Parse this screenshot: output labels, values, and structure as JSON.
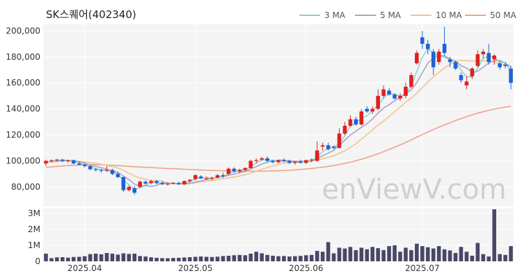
{
  "title": "SK스퀘어(402340)",
  "watermark": "enViewV.com",
  "colors": {
    "up": "#e02020",
    "down": "#1f62d6",
    "ma3": "#7fd3d0",
    "ma5": "#a9a2c9",
    "ma10": "#efc58c",
    "ma50": "#f0a28c",
    "volume": "#474868",
    "panel_bg": "#f4f4f4",
    "grid": "#ffffff"
  },
  "chart_data": {
    "type": "candlestick",
    "price_axis": {
      "min": 65000,
      "max": 205000,
      "ticks": [
        "200,000",
        "180,000",
        "160,000",
        "140,000",
        "120,000",
        "100,000",
        "80,000"
      ],
      "tick_values": [
        200000,
        180000,
        160000,
        140000,
        120000,
        100000,
        80000
      ]
    },
    "volume_axis": {
      "min": 0,
      "max": 3300000,
      "ticks": [
        "3M",
        "2M",
        "1M",
        "0"
      ],
      "tick_values": [
        3000000,
        2000000,
        1000000,
        0
      ]
    },
    "x_ticks": [
      {
        "label": "2025.04",
        "index": 7
      },
      {
        "label": "2025.05",
        "index": 27
      },
      {
        "label": "2025.06",
        "index": 47
      },
      {
        "label": "2025.07",
        "index": 68
      }
    ],
    "legend": [
      "3 MA",
      "5 MA",
      "10 MA",
      "50 MA"
    ],
    "candles": [
      [
        98000,
        101000,
        96000,
        100000
      ],
      [
        100000,
        101000,
        99000,
        100500
      ],
      [
        100500,
        101500,
        99500,
        101000
      ],
      [
        101000,
        101500,
        99000,
        100000
      ],
      [
        100000,
        101000,
        98500,
        100500
      ],
      [
        100500,
        101000,
        97500,
        98000
      ],
      [
        98000,
        99500,
        96500,
        97000
      ],
      [
        97000,
        98000,
        95000,
        96000
      ],
      [
        96000,
        97000,
        93000,
        93500
      ],
      [
        93500,
        94500,
        92000,
        93000
      ],
      [
        93000,
        94000,
        91000,
        92500
      ],
      [
        92500,
        96000,
        91500,
        93000
      ],
      [
        93000,
        94000,
        89000,
        90000
      ],
      [
        90000,
        91500,
        87000,
        87500
      ],
      [
        87500,
        88000,
        76000,
        77500
      ],
      [
        77500,
        81000,
        76500,
        80000
      ],
      [
        79000,
        80500,
        74000,
        75500
      ],
      [
        80000,
        85000,
        79000,
        84000
      ],
      [
        84000,
        85000,
        81000,
        82500
      ],
      [
        83000,
        85500,
        82000,
        84500
      ],
      [
        84500,
        85500,
        82000,
        83000
      ],
      [
        83000,
        84500,
        81500,
        82000
      ],
      [
        82000,
        83500,
        81000,
        82500
      ],
      [
        82500,
        84000,
        82000,
        83000
      ],
      [
        83000,
        84000,
        81500,
        82000
      ],
      [
        82000,
        85000,
        81500,
        84500
      ],
      [
        84500,
        86000,
        83500,
        85500
      ],
      [
        86000,
        90000,
        85000,
        89000
      ],
      [
        88000,
        89000,
        86000,
        86500
      ],
      [
        86500,
        88000,
        85500,
        86500
      ],
      [
        86500,
        88000,
        85000,
        87000
      ],
      [
        87000,
        90000,
        86500,
        89000
      ],
      [
        89000,
        91000,
        87000,
        88000
      ],
      [
        90000,
        95000,
        89000,
        94000
      ],
      [
        94000,
        95000,
        91000,
        92000
      ],
      [
        92000,
        94000,
        90500,
        93000
      ],
      [
        93000,
        95000,
        92000,
        94500
      ],
      [
        94500,
        101000,
        94000,
        100000
      ],
      [
        100000,
        102000,
        98000,
        100500
      ],
      [
        101000,
        103000,
        100000,
        102000
      ],
      [
        102000,
        103500,
        99000,
        100000
      ],
      [
        100000,
        101000,
        98000,
        99000
      ],
      [
        99000,
        101000,
        98000,
        100500
      ],
      [
        100500,
        102000,
        99000,
        100000
      ],
      [
        100000,
        101000,
        97500,
        98500
      ],
      [
        98500,
        100000,
        97000,
        99500
      ],
      [
        99500,
        101000,
        98000,
        98500
      ],
      [
        98500,
        101000,
        97500,
        100500
      ],
      [
        100500,
        102000,
        99000,
        101000
      ],
      [
        100000,
        115000,
        99500,
        108000
      ],
      [
        111000,
        114000,
        108000,
        112000
      ],
      [
        112000,
        114000,
        108000,
        109000
      ],
      [
        111000,
        112000,
        109000,
        110000
      ],
      [
        110000,
        125000,
        109500,
        121000
      ],
      [
        121000,
        130000,
        120000,
        127000
      ],
      [
        127000,
        135000,
        126000,
        132000
      ],
      [
        132000,
        134000,
        127000,
        128000
      ],
      [
        128000,
        140000,
        127000,
        138000
      ],
      [
        140000,
        142000,
        137000,
        138000
      ],
      [
        138000,
        142000,
        136000,
        140000
      ],
      [
        140000,
        155000,
        139000,
        150000
      ],
      [
        150000,
        158000,
        148000,
        155000
      ],
      [
        154000,
        156000,
        150000,
        151000
      ],
      [
        151000,
        152000,
        147000,
        148000
      ],
      [
        148000,
        152000,
        146000,
        150000
      ],
      [
        150000,
        160000,
        148000,
        157000
      ],
      [
        157000,
        168000,
        156000,
        166000
      ],
      [
        175000,
        185000,
        174000,
        183000
      ],
      [
        195000,
        200000,
        186000,
        190000
      ],
      [
        190000,
        193000,
        182000,
        186000
      ],
      [
        184000,
        186000,
        166000,
        172000
      ],
      [
        176000,
        186000,
        174000,
        184000
      ],
      [
        190000,
        203000,
        181000,
        183000
      ],
      [
        178000,
        180000,
        172000,
        176000
      ],
      [
        176000,
        177000,
        170000,
        171000
      ],
      [
        166000,
        168000,
        160000,
        162000
      ],
      [
        158000,
        165000,
        155000,
        161000
      ],
      [
        165000,
        172000,
        163000,
        171000
      ],
      [
        173000,
        185000,
        172000,
        182000
      ],
      [
        182000,
        186000,
        179000,
        184000
      ],
      [
        183000,
        190000,
        174000,
        176000
      ],
      [
        178000,
        182000,
        174000,
        181000
      ],
      [
        175000,
        177000,
        170000,
        172000
      ],
      [
        174000,
        176000,
        171000,
        173000
      ],
      [
        171000,
        173000,
        155000,
        160000
      ]
    ],
    "ma3": [
      99000,
      99800,
      100500,
      100500,
      100300,
      99500,
      98500,
      97000,
      95500,
      94200,
      93000,
      92800,
      91800,
      89800,
      85000,
      81700,
      77700,
      79800,
      80700,
      83700,
      83300,
      82500,
      82500,
      82500,
      82500,
      83300,
      84000,
      86300,
      87000,
      87300,
      86700,
      87500,
      88000,
      90300,
      91300,
      93000,
      93200,
      95500,
      98300,
      100800,
      100800,
      100300,
      99800,
      99800,
      99300,
      99300,
      98800,
      99500,
      100200,
      103200,
      107000,
      109700,
      110300,
      113300,
      119300,
      126700,
      129000,
      132700,
      134700,
      138700,
      142700,
      148300,
      152000,
      151300,
      149700,
      151700,
      157700,
      168700,
      179700,
      186300,
      182700,
      180700,
      179700,
      177700,
      176700,
      169700,
      164700,
      164700,
      171300,
      179000,
      180700,
      179700,
      176300,
      175300,
      168300
    ],
    "ma5": [
      99000,
      99500,
      100000,
      100300,
      100400,
      100000,
      99400,
      98300,
      96900,
      95700,
      94800,
      93600,
      92400,
      91200,
      88300,
      85600,
      82100,
      80600,
      80900,
      80400,
      81100,
      83200,
      82900,
      82800,
      82500,
      82600,
      82900,
      83700,
      84500,
      85600,
      86500,
      87400,
      88100,
      89000,
      89800,
      90900,
      91900,
      93800,
      95600,
      97600,
      98900,
      100000,
      100600,
      100600,
      100000,
      99700,
      99500,
      99500,
      99800,
      101700,
      104000,
      106000,
      108000,
      112000,
      115800,
      119800,
      122800,
      125800,
      128600,
      132200,
      136800,
      140600,
      143200,
      146200,
      148800,
      151600,
      154600,
      160200,
      167800,
      175000,
      179400,
      181000,
      180800,
      178400,
      176800,
      173200,
      171400,
      168100,
      169000,
      171900,
      175400,
      177100,
      177100,
      175200,
      172200
    ],
    "ma10": [
      99000,
      99200,
      99500,
      99800,
      100000,
      100000,
      99700,
      99300,
      98700,
      98100,
      97400,
      96500,
      95600,
      94600,
      92600,
      90600,
      88400,
      86800,
      85900,
      85000,
      84800,
      84500,
      83000,
      82500,
      82300,
      82000,
      82500,
      83200,
      84000,
      84400,
      85000,
      85700,
      86300,
      87000,
      87600,
      88400,
      89300,
      90600,
      92000,
      93600,
      94900,
      96200,
      97300,
      98300,
      99000,
      99600,
      99900,
      100000,
      100200,
      100800,
      101700,
      102700,
      103900,
      105800,
      107800,
      110400,
      113200,
      116600,
      120200,
      123800,
      127600,
      130700,
      134000,
      137800,
      141400,
      145000,
      148400,
      152000,
      156300,
      160600,
      164700,
      168100,
      171400,
      174300,
      176800,
      177100,
      177100,
      176800,
      177000,
      177100,
      176600,
      176100,
      174900,
      173700,
      172300
    ],
    "ma50": [
      95000,
      95400,
      95800,
      96100,
      96400,
      96600,
      96800,
      97000,
      97100,
      97100,
      97000,
      96800,
      96600,
      96400,
      96100,
      95800,
      95500,
      95300,
      95100,
      94900,
      94600,
      94400,
      94200,
      94000,
      93800,
      93600,
      93400,
      93200,
      93000,
      92800,
      92700,
      92500,
      92400,
      92300,
      92200,
      92100,
      92100,
      92100,
      92100,
      92100,
      92200,
      92300,
      92400,
      92600,
      92800,
      93100,
      93400,
      93800,
      94200,
      94700,
      95200,
      95800,
      96400,
      97200,
      98000,
      99000,
      100100,
      101300,
      102600,
      104000,
      105500,
      107100,
      108800,
      110500,
      112300,
      114200,
      116200,
      118200,
      120200,
      122200,
      124100,
      125900,
      127700,
      129400,
      131000,
      132500,
      134000,
      135400,
      136700,
      137800,
      138900,
      139800,
      140600,
      141300,
      142000
    ],
    "volume": [
      480000,
      200000,
      250000,
      260000,
      230000,
      270000,
      280000,
      320000,
      450000,
      480000,
      440000,
      520000,
      480000,
      420000,
      500000,
      460000,
      480000,
      330000,
      300000,
      250000,
      220000,
      200000,
      190000,
      210000,
      220000,
      240000,
      260000,
      280000,
      300000,
      280000,
      270000,
      290000,
      330000,
      350000,
      380000,
      400000,
      380000,
      480000,
      600000,
      500000,
      400000,
      350000,
      320000,
      330000,
      300000,
      320000,
      340000,
      380000,
      400000,
      650000,
      600000,
      1200000,
      500000,
      850000,
      800000,
      900000,
      700000,
      850000,
      750000,
      900000,
      820000,
      700000,
      950000,
      1000000,
      600000,
      850000,
      700000,
      1100000,
      950000,
      880000,
      800000,
      950000,
      750000,
      680000,
      520000,
      900000,
      600000,
      350000,
      1150000,
      450000,
      300000,
      3250000,
      450000,
      400000,
      950000
    ]
  }
}
